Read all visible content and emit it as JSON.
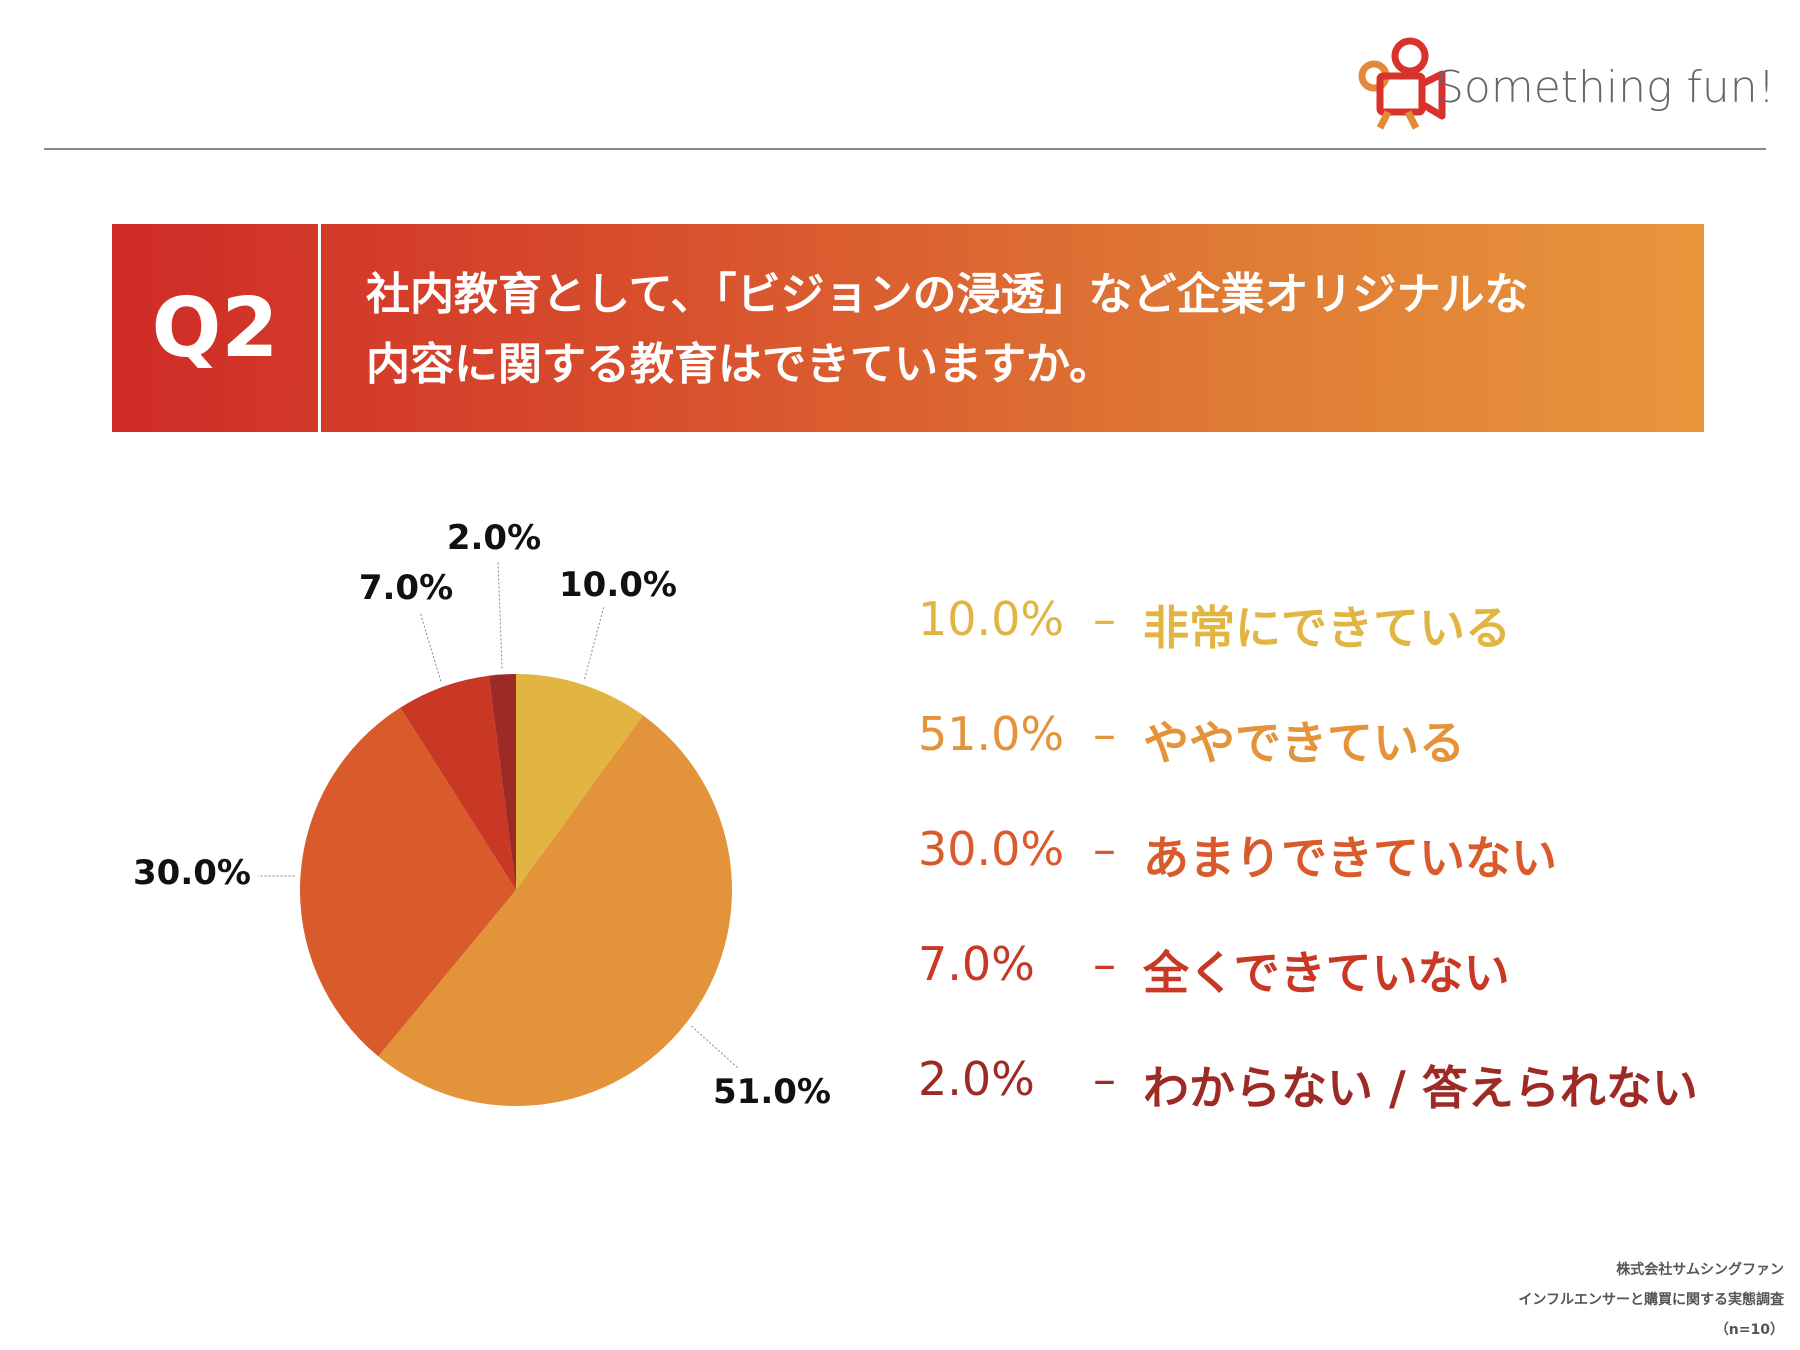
{
  "header": {
    "logo_text": "Something fun!",
    "logo_colors": [
      "#d7322b",
      "#e4883a"
    ]
  },
  "banner": {
    "q_number": "Q2",
    "question_line1": "社内教育として、「ビジョンの浸透」など企業オリジナルな",
    "question_line2": "内容に関する教育はできていますか。"
  },
  "chart_data": {
    "type": "pie",
    "title": "",
    "slices": [
      {
        "label": "非常にできている",
        "value": 10.0,
        "value_text": "10.0%",
        "color": "#e2b542"
      },
      {
        "label": "ややできている",
        "value": 51.0,
        "value_text": "51.0%",
        "color": "#e3933a"
      },
      {
        "label": "あまりできていない",
        "value": 30.0,
        "value_text": "30.0%",
        "color": "#d95a2b"
      },
      {
        "label": "全くできていない",
        "value": 7.0,
        "value_text": "7.0%",
        "color": "#c83825"
      },
      {
        "label": "わからない / 答えられない",
        "value": 2.0,
        "value_text": "2.0%",
        "color": "#9e2a26"
      }
    ]
  },
  "legend": {
    "dash": "–",
    "items": [
      {
        "value": "10.0%",
        "label": "非常にできている",
        "color": "#e2b542"
      },
      {
        "value": "51.0%",
        "label": "ややできている",
        "color": "#e3933a"
      },
      {
        "value": "30.0%",
        "label": "あまりできていない",
        "color": "#d95a2b"
      },
      {
        "value": "7.0%",
        "label": "全くできていない",
        "color": "#c83825"
      },
      {
        "value": "2.0%",
        "label": "わからない / 答えられない",
        "color": "#9e2a26"
      }
    ]
  },
  "footer": {
    "company": "株式会社サムシングファン",
    "survey": "インフルエンサーと購買に関する実態調査",
    "n": "（n=10）"
  }
}
